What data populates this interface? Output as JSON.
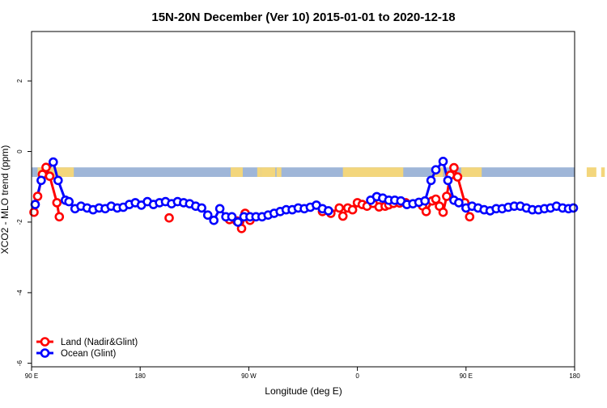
{
  "chart_data": {
    "type": "line",
    "title": "15N-20N December (Ver 10)   2015-01-01 to 2020-12-18",
    "xlabel": "Longitude (deg E)",
    "ylabel": "XCO2 - MLO trend (ppm)",
    "x_ticks": [
      {
        "value": 90,
        "label": "90 E"
      },
      {
        "value": 180,
        "label": "180"
      },
      {
        "value": 270,
        "label": "90 W"
      },
      {
        "value": 360,
        "label": "0"
      },
      {
        "value": 450,
        "label": "90 E"
      },
      {
        "value": 540,
        "label": "180"
      }
    ],
    "y_ticks": [
      {
        "value": 2,
        "label": "2"
      },
      {
        "value": 0,
        "label": "0"
      },
      {
        "value": -2,
        "label": "-2"
      },
      {
        "value": -4,
        "label": "-4"
      },
      {
        "value": -6,
        "label": "-6"
      }
    ],
    "xlim": [
      90,
      540
    ],
    "ylim": [
      -6.1,
      3.4
    ],
    "legend_position": "bottom-left",
    "land_mask": {
      "y_range": [
        -0.72,
        -0.45
      ],
      "ocean_color": "#9fb6d8",
      "land_color": "#f3d67c",
      "land_segments": [
        [
          95,
          125
        ],
        [
          255,
          265
        ],
        [
          277,
          280
        ],
        [
          280,
          292
        ],
        [
          293,
          297
        ],
        [
          348,
          398
        ],
        [
          422,
          431
        ],
        [
          446,
          463
        ],
        [
          550,
          558
        ],
        [
          562,
          565
        ],
        [
          615,
          640
        ]
      ]
    },
    "series": [
      {
        "name": "Land (Nadir&Glint)",
        "color": "#ff0000",
        "points": [
          [
            92,
            -1.72
          ],
          [
            95,
            -1.27
          ],
          [
            99,
            -0.65
          ],
          [
            102,
            -0.45
          ],
          [
            105,
            -0.7
          ],
          [
            111,
            -1.45
          ],
          [
            113,
            -1.85
          ],
          [
            204,
            -1.88
          ],
          [
            254,
            -1.93
          ],
          [
            260,
            -1.97
          ],
          [
            264,
            -2.18
          ],
          [
            267,
            -1.75
          ],
          [
            271,
            -1.95
          ],
          [
            331,
            -1.7
          ],
          [
            338,
            -1.75
          ],
          [
            345,
            -1.6
          ],
          [
            348,
            -1.83
          ],
          [
            352,
            -1.6
          ],
          [
            356,
            -1.65
          ],
          [
            360,
            -1.45
          ],
          [
            364,
            -1.5
          ],
          [
            368,
            -1.55
          ],
          [
            373,
            -1.47
          ],
          [
            378,
            -1.57
          ],
          [
            383,
            -1.55
          ],
          [
            386,
            -1.51
          ],
          [
            390,
            -1.47
          ],
          [
            395,
            -1.46
          ],
          [
            400,
            -1.45
          ],
          [
            414,
            -1.54
          ],
          [
            417,
            -1.7
          ],
          [
            422,
            -1.4
          ],
          [
            425,
            -1.35
          ],
          [
            428,
            -1.55
          ],
          [
            431,
            -1.72
          ],
          [
            434,
            -1.27
          ],
          [
            437,
            -0.67
          ],
          [
            440,
            -0.46
          ],
          [
            443,
            -0.72
          ],
          [
            449,
            -1.45
          ],
          [
            453,
            -1.85
          ]
        ]
      },
      {
        "name": "Ocean (Glint)",
        "color": "#0000ff",
        "points": [
          [
            93,
            -1.5
          ],
          [
            98,
            -0.82
          ],
          [
            108,
            -0.3
          ],
          [
            112,
            -0.82
          ],
          [
            118,
            -1.38
          ],
          [
            121,
            -1.42
          ],
          [
            126,
            -1.62
          ],
          [
            131,
            -1.55
          ],
          [
            136,
            -1.6
          ],
          [
            141,
            -1.65
          ],
          [
            146,
            -1.6
          ],
          [
            151,
            -1.62
          ],
          [
            156,
            -1.55
          ],
          [
            161,
            -1.6
          ],
          [
            166,
            -1.58
          ],
          [
            171,
            -1.5
          ],
          [
            176,
            -1.45
          ],
          [
            181,
            -1.52
          ],
          [
            186,
            -1.42
          ],
          [
            191,
            -1.5
          ],
          [
            196,
            -1.45
          ],
          [
            201,
            -1.42
          ],
          [
            206,
            -1.48
          ],
          [
            211,
            -1.42
          ],
          [
            216,
            -1.45
          ],
          [
            221,
            -1.48
          ],
          [
            226,
            -1.55
          ],
          [
            231,
            -1.6
          ],
          [
            236,
            -1.8
          ],
          [
            241,
            -1.95
          ],
          [
            246,
            -1.62
          ],
          [
            251,
            -1.85
          ],
          [
            256,
            -1.85
          ],
          [
            261,
            -2.0
          ],
          [
            266,
            -1.85
          ],
          [
            271,
            -1.85
          ],
          [
            276,
            -1.85
          ],
          [
            281,
            -1.85
          ],
          [
            286,
            -1.8
          ],
          [
            291,
            -1.75
          ],
          [
            296,
            -1.7
          ],
          [
            301,
            -1.65
          ],
          [
            306,
            -1.65
          ],
          [
            311,
            -1.6
          ],
          [
            316,
            -1.62
          ],
          [
            321,
            -1.58
          ],
          [
            326,
            -1.52
          ],
          [
            331,
            -1.62
          ],
          [
            336,
            -1.68
          ],
          [
            371,
            -1.38
          ],
          [
            376,
            -1.28
          ],
          [
            381,
            -1.32
          ],
          [
            386,
            -1.38
          ],
          [
            391,
            -1.38
          ],
          [
            396,
            -1.4
          ],
          [
            401,
            -1.5
          ],
          [
            406,
            -1.48
          ],
          [
            411,
            -1.44
          ],
          [
            416,
            -1.4
          ],
          [
            421,
            -0.82
          ],
          [
            425,
            -0.52
          ],
          [
            431,
            -0.28
          ],
          [
            435,
            -0.82
          ],
          [
            440,
            -1.38
          ],
          [
            444,
            -1.45
          ],
          [
            450,
            -1.6
          ],
          [
            455,
            -1.55
          ],
          [
            460,
            -1.6
          ],
          [
            465,
            -1.65
          ],
          [
            470,
            -1.68
          ],
          [
            475,
            -1.62
          ],
          [
            480,
            -1.62
          ],
          [
            485,
            -1.58
          ],
          [
            490,
            -1.55
          ],
          [
            495,
            -1.55
          ],
          [
            500,
            -1.6
          ],
          [
            505,
            -1.65
          ],
          [
            510,
            -1.65
          ],
          [
            515,
            -1.62
          ],
          [
            520,
            -1.6
          ],
          [
            525,
            -1.55
          ],
          [
            530,
            -1.6
          ],
          [
            535,
            -1.62
          ],
          [
            539,
            -1.6
          ]
        ]
      }
    ]
  }
}
